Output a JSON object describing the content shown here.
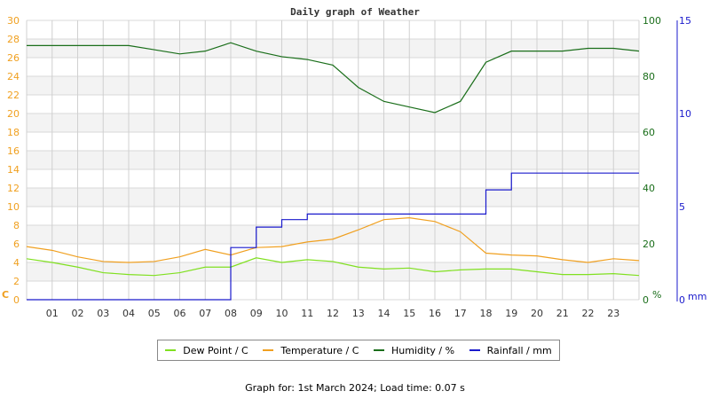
{
  "chart_data": {
    "type": "line",
    "title": "Daily graph of Weather",
    "xlabel": "",
    "x_ticks": [
      "01",
      "02",
      "03",
      "04",
      "05",
      "06",
      "07",
      "08",
      "09",
      "10",
      "11",
      "12",
      "13",
      "14",
      "15",
      "16",
      "17",
      "18",
      "19",
      "20",
      "21",
      "22",
      "23"
    ],
    "x": [
      0,
      1,
      2,
      3,
      4,
      5,
      6,
      7,
      8,
      9,
      10,
      11,
      12,
      13,
      14,
      15,
      16,
      17,
      18,
      19,
      20,
      21,
      22,
      23,
      24
    ],
    "axes": {
      "left": {
        "label": "C",
        "range": [
          0,
          30
        ],
        "ticks": [
          0,
          2,
          4,
          6,
          8,
          10,
          12,
          14,
          16,
          18,
          20,
          22,
          24,
          26,
          28,
          30
        ],
        "color": "#f0a020"
      },
      "right": {
        "label": "%",
        "range": [
          0,
          100
        ],
        "ticks": [
          0,
          20,
          40,
          60,
          80,
          100
        ],
        "color": "#1a6e1a"
      },
      "rain": {
        "label": "mm",
        "range": [
          0,
          15
        ],
        "ticks": [
          0,
          5,
          10,
          15
        ],
        "color": "#1a1acc"
      }
    },
    "grid": true,
    "legend_position": "bottom",
    "series": [
      {
        "name": "Dew Point / C",
        "axis": "left",
        "color": "#80e020",
        "values": [
          4.4,
          4.0,
          3.5,
          2.9,
          2.7,
          2.6,
          2.9,
          3.5,
          3.5,
          4.5,
          4.0,
          4.3,
          4.1,
          3.5,
          3.3,
          3.4,
          3.0,
          3.2,
          3.3,
          3.3,
          3.0,
          2.7,
          2.7,
          2.8,
          2.6
        ]
      },
      {
        "name": "Temperature / C",
        "axis": "left",
        "color": "#f0a020",
        "values": [
          5.7,
          5.3,
          4.6,
          4.1,
          4.0,
          4.1,
          4.6,
          5.4,
          4.8,
          5.6,
          5.7,
          6.2,
          6.5,
          7.5,
          8.6,
          8.8,
          8.4,
          7.3,
          5.0,
          4.8,
          4.7,
          4.3,
          4.0,
          4.4,
          4.2
        ]
      },
      {
        "name": "Humidity / %",
        "axis": "right",
        "color": "#1a6e1a",
        "values": [
          91,
          91,
          91,
          91,
          91,
          89.5,
          88,
          89,
          92,
          89,
          87,
          86,
          84,
          76,
          71,
          69,
          67,
          71,
          85,
          89,
          89,
          89,
          90,
          90,
          89
        ]
      },
      {
        "name": "Rainfall / mm",
        "axis": "rain",
        "color": "#1a1acc",
        "values": [
          0,
          0,
          0,
          0,
          0,
          0,
          0,
          0,
          2.8,
          3.9,
          4.3,
          4.6,
          4.6,
          4.6,
          4.6,
          4.6,
          4.6,
          4.6,
          5.9,
          6.8,
          6.8,
          6.8,
          6.8,
          6.8,
          6.8
        ]
      }
    ]
  },
  "legend": {
    "items": [
      {
        "label": "Dew Point / C",
        "color": "#80e020"
      },
      {
        "label": "Temperature / C",
        "color": "#f0a020"
      },
      {
        "label": "Humidity / %",
        "color": "#1a6e1a"
      },
      {
        "label": "Rainfall / mm",
        "color": "#1a1acc"
      }
    ]
  },
  "footer": {
    "text": "Graph for: 1st March 2024; Load time: 0.07 s"
  }
}
